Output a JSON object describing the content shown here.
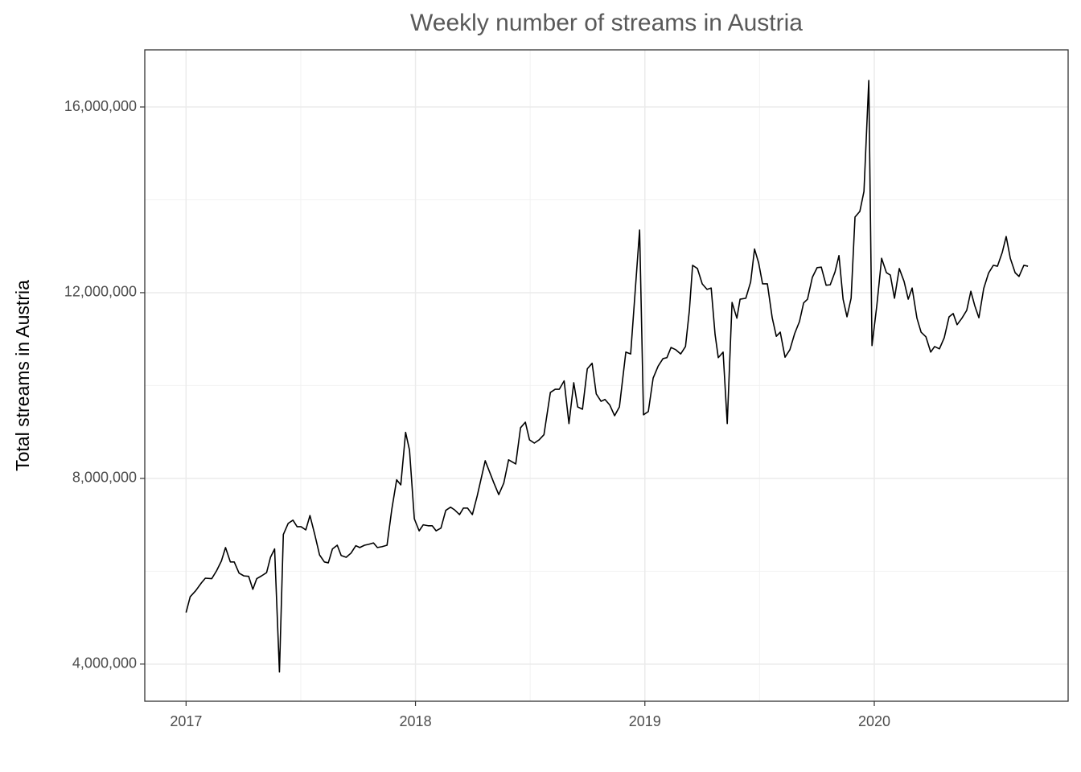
{
  "chart_data": {
    "type": "line",
    "title": "Weekly number of streams in Austria",
    "y_label": "Total streams in Austria",
    "xlim": [
      2016.82,
      2020.845
    ],
    "xticks": [
      2017,
      2018,
      2019,
      2020
    ],
    "ylim": [
      3200000,
      17230000
    ],
    "yticks": [
      {
        "value": 4000000,
        "label": "4,000,000"
      },
      {
        "value": 8000000,
        "label": "8,000,000"
      },
      {
        "value": 12000000,
        "label": "12,000,000"
      },
      {
        "value": 16000000,
        "label": "16,000,000"
      }
    ],
    "grid": true,
    "minor_grid": true,
    "series": [
      {
        "name": "streams",
        "color": "#000000",
        "x": [
          2017.0,
          2017.018,
          2017.042,
          2017.067,
          2017.084,
          2017.112,
          2017.133,
          2017.154,
          2017.172,
          2017.193,
          2017.21,
          2017.231,
          2017.252,
          2017.273,
          2017.291,
          2017.308,
          2017.329,
          2017.351,
          2017.368,
          2017.386,
          2017.407,
          2017.424,
          2017.445,
          2017.466,
          2017.484,
          2017.501,
          2017.522,
          2017.54,
          2017.561,
          2017.582,
          2017.603,
          2017.62,
          2017.638,
          2017.659,
          2017.676,
          2017.698,
          2017.719,
          2017.74,
          2017.757,
          2017.778,
          2017.796,
          2017.817,
          2017.834,
          2017.855,
          2017.876,
          2017.897,
          2017.918,
          2017.936,
          2017.957,
          2017.974,
          2017.995,
          2018.016,
          2018.034,
          2018.055,
          2018.073,
          2018.09,
          2018.111,
          2018.132,
          2018.153,
          2018.171,
          2018.192,
          2018.209,
          2018.227,
          2018.248,
          2018.269,
          2018.304,
          2018.342,
          2018.363,
          2018.385,
          2018.406,
          2018.437,
          2018.458,
          2018.479,
          2018.497,
          2018.518,
          2018.539,
          2018.56,
          2018.588,
          2018.609,
          2018.627,
          2018.648,
          2018.669,
          2018.69,
          2018.707,
          2018.728,
          2018.749,
          2018.77,
          2018.788,
          2018.809,
          2018.826,
          2018.847,
          2018.868,
          2018.889,
          2018.917,
          2018.938,
          2018.977,
          2018.994,
          2019.015,
          2019.036,
          2019.058,
          2019.079,
          2019.096,
          2019.114,
          2019.135,
          2019.156,
          2019.177,
          2019.194,
          2019.208,
          2019.229,
          2019.25,
          2019.271,
          2019.289,
          2019.306,
          2019.32,
          2019.341,
          2019.359,
          2019.38,
          2019.401,
          2019.415,
          2019.44,
          2019.461,
          2019.478,
          2019.496,
          2019.513,
          2019.534,
          2019.555,
          2019.573,
          2019.59,
          2019.611,
          2019.632,
          2019.653,
          2019.674,
          2019.692,
          2019.709,
          2019.73,
          2019.751,
          2019.769,
          2019.79,
          2019.808,
          2019.829,
          2019.846,
          2019.864,
          2019.881,
          2019.899,
          2019.916,
          2019.937,
          2019.955,
          2019.976,
          2019.99,
          2020.011,
          2020.032,
          2020.053,
          2020.07,
          2020.088,
          2020.109,
          2020.13,
          2020.148,
          2020.165,
          2020.186,
          2020.204,
          2020.225,
          2020.246,
          2020.263,
          2020.284,
          2020.305,
          2020.326,
          2020.344,
          2020.361,
          2020.382,
          2020.403,
          2020.421,
          2020.438,
          2020.456,
          2020.477,
          2020.498,
          2020.519,
          2020.537,
          2020.558,
          2020.575,
          2020.593,
          2020.614,
          2020.631,
          2020.652,
          2020.67
        ],
        "values": [
          5110000,
          5450000,
          5580000,
          5750000,
          5850000,
          5840000,
          6010000,
          6220000,
          6510000,
          6200000,
          6200000,
          5960000,
          5900000,
          5890000,
          5610000,
          5840000,
          5900000,
          5970000,
          6300000,
          6480000,
          3830000,
          6790000,
          7030000,
          7100000,
          6960000,
          6960000,
          6890000,
          7200000,
          6790000,
          6350000,
          6200000,
          6180000,
          6480000,
          6560000,
          6340000,
          6300000,
          6390000,
          6550000,
          6510000,
          6560000,
          6580000,
          6610000,
          6510000,
          6530000,
          6560000,
          7340000,
          7970000,
          7860000,
          8990000,
          8610000,
          7130000,
          6870000,
          7000000,
          6980000,
          6980000,
          6870000,
          6930000,
          7310000,
          7380000,
          7320000,
          7220000,
          7360000,
          7360000,
          7220000,
          7620000,
          8380000,
          7900000,
          7650000,
          7900000,
          8400000,
          8310000,
          9090000,
          9210000,
          8830000,
          8760000,
          8830000,
          8940000,
          9850000,
          9920000,
          9920000,
          10100000,
          9180000,
          10060000,
          9540000,
          9490000,
          10360000,
          10480000,
          9820000,
          9660000,
          9700000,
          9580000,
          9350000,
          9540000,
          10720000,
          10680000,
          13350000,
          9370000,
          9440000,
          10160000,
          10420000,
          10580000,
          10600000,
          10820000,
          10770000,
          10680000,
          10840000,
          11620000,
          12590000,
          12520000,
          12190000,
          12070000,
          12100000,
          11100000,
          10600000,
          10720000,
          9180000,
          11790000,
          11450000,
          11860000,
          11880000,
          12230000,
          12940000,
          12640000,
          12190000,
          12190000,
          11460000,
          11060000,
          11150000,
          10610000,
          10770000,
          11120000,
          11380000,
          11780000,
          11860000,
          12330000,
          12540000,
          12550000,
          12160000,
          12170000,
          12450000,
          12800000,
          11860000,
          11480000,
          11880000,
          13630000,
          13750000,
          14180000,
          16570000,
          10860000,
          11720000,
          12740000,
          12430000,
          12380000,
          11880000,
          12520000,
          12240000,
          11860000,
          12100000,
          11450000,
          11150000,
          11050000,
          10720000,
          10840000,
          10790000,
          11030000,
          11480000,
          11550000,
          11310000,
          11450000,
          11620000,
          12030000,
          11720000,
          11460000,
          12090000,
          12420000,
          12590000,
          12570000,
          12870000,
          13210000,
          12740000,
          12430000,
          12350000,
          12590000,
          12570000
        ]
      }
    ]
  }
}
